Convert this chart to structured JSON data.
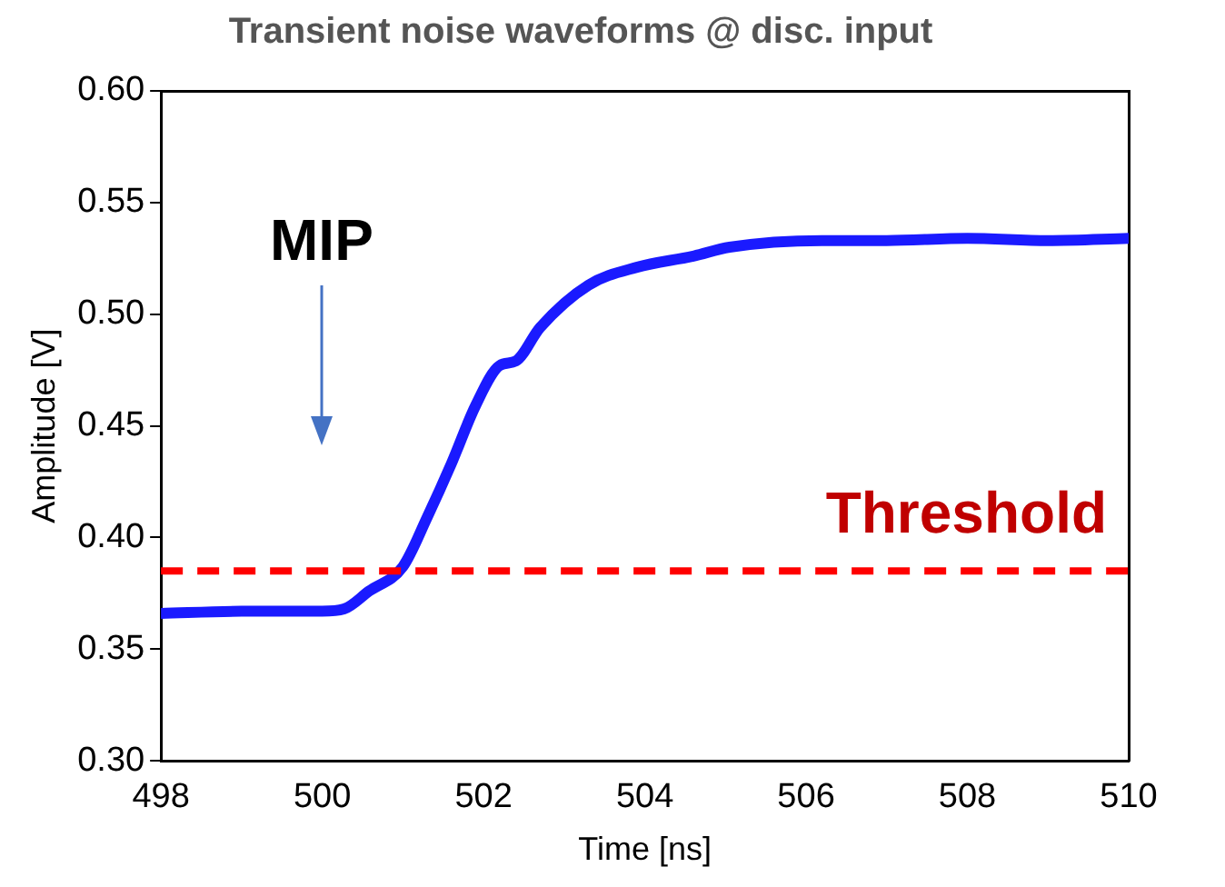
{
  "chart_data": {
    "type": "line",
    "title": "Transient noise waveforms @ disc. input",
    "xlabel": "Time [ns]",
    "ylabel": "Amplitude [V]",
    "x": [
      498,
      499,
      500,
      500.27,
      500.58,
      501.0,
      501.3,
      501.6,
      501.9,
      502.2,
      502.4,
      502.7,
      503.3,
      503.9,
      504.6,
      505.05,
      506.2,
      507,
      508,
      509,
      510
    ],
    "series": [
      {
        "color": "#1a1aff",
        "values": [
          0.366,
          0.367,
          0.367,
          0.368,
          0.376,
          0.387,
          0.409,
          0.433,
          0.459,
          0.477,
          0.479,
          0.494,
          0.513,
          0.521,
          0.526,
          0.53,
          0.533,
          0.533,
          0.534,
          0.533,
          0.534
        ]
      }
    ],
    "xlim": [
      498,
      510
    ],
    "xticks": [
      498,
      500,
      502,
      504,
      506,
      508,
      510
    ],
    "ylim": [
      0.3,
      0.6
    ],
    "yticks": [
      {
        "value": 0.3,
        "label": "0.30"
      },
      {
        "value": 0.35,
        "label": "0.35"
      },
      {
        "value": 0.4,
        "label": "0.40"
      },
      {
        "value": 0.45,
        "label": "0.45"
      },
      {
        "value": 0.5,
        "label": "0.50"
      },
      {
        "value": 0.55,
        "label": "0.55"
      },
      {
        "value": 0.6,
        "label": "0.60"
      }
    ],
    "ref_lines": [
      {
        "axis": "y",
        "value": 0.385,
        "label": "Threshold",
        "color": "#ff0000",
        "line_style": "dashed"
      }
    ],
    "annotations": [
      "MIP"
    ],
    "grid": false,
    "legend": false,
    "marker": "none",
    "line_style": "solid"
  }
}
